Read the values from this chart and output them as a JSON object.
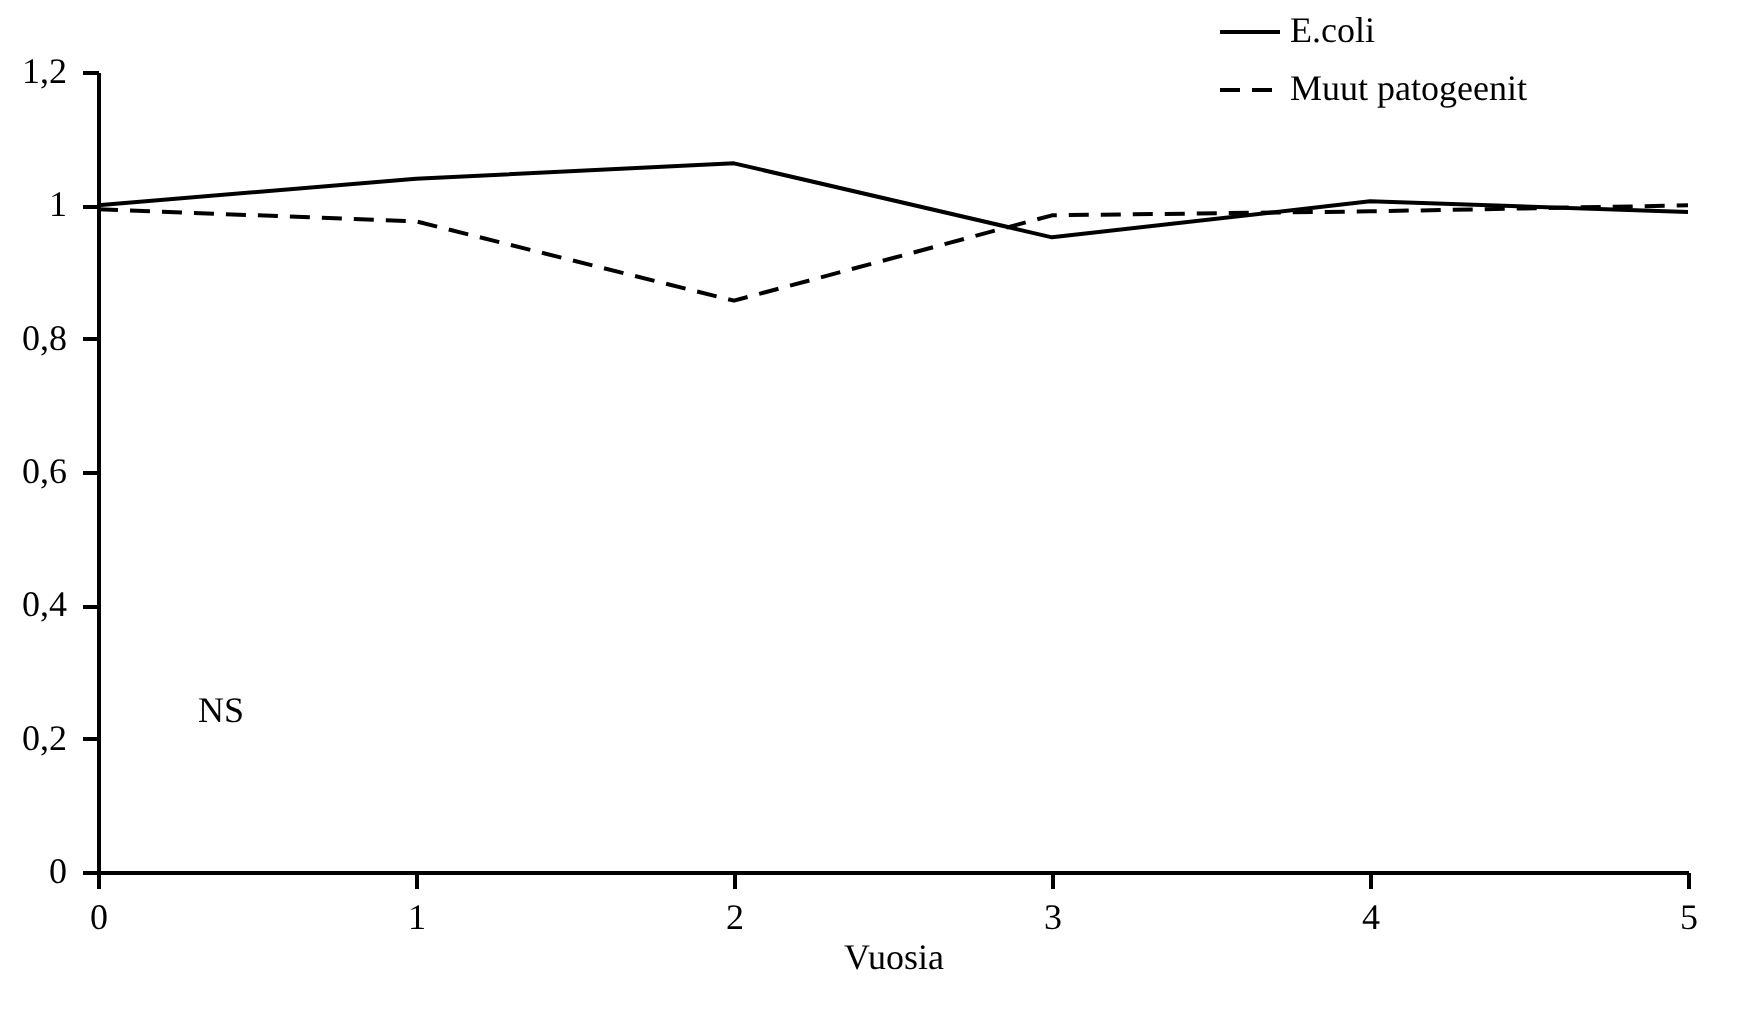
{
  "chart_data": {
    "type": "line",
    "xlabel": "Vuosia",
    "x": [
      0,
      1,
      2,
      3,
      4,
      5
    ],
    "series": [
      {
        "name": "E.coli",
        "color": "#000000",
        "line_style": "solid",
        "values": [
          1.0,
          1.04,
          1.063,
          0.952,
          1.006,
          0.99
        ]
      },
      {
        "name": "Muut patogeenit",
        "color": "#000000",
        "line_style": "dashed",
        "values": [
          0.994,
          0.976,
          0.857,
          0.985,
          0.991,
          1.0
        ]
      }
    ],
    "xlim": [
      0,
      5
    ],
    "xticks": [
      0,
      1,
      2,
      3,
      4,
      5
    ],
    "ylim": [
      0,
      1.2
    ],
    "yticks": [
      0,
      {
        "value": 0.2,
        "label": "0,2"
      },
      {
        "value": 0.4,
        "label": "0,4"
      },
      {
        "value": 0.6,
        "label": "0,6"
      },
      {
        "value": 0.8,
        "label": "0,8"
      },
      1,
      {
        "value": 1.2,
        "label": "1,2"
      }
    ],
    "annotations": [
      "NS"
    ],
    "legend": "top right",
    "grid": false,
    "marker": "none"
  }
}
